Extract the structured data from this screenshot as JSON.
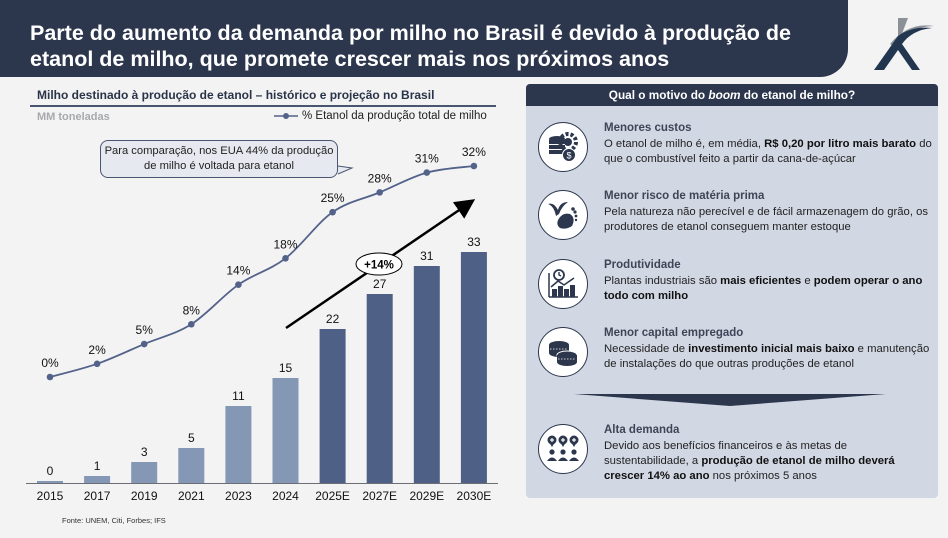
{
  "header": {
    "title": "Parte do aumento da demanda por milho no Brasil é devido à produção de etanol de milho, que promete crescer mais nos próximos anos",
    "logo": "company-logo-icon"
  },
  "chart_data": {
    "type": "bar",
    "title": "Milho destinado à produção de etanol – histórico e projeção no Brasil",
    "ylabel": "MM toneladas",
    "xlabel": "",
    "categories": [
      "2015",
      "2017",
      "2019",
      "2021",
      "2023",
      "2024",
      "2025E",
      "2027E",
      "2029E",
      "2030E"
    ],
    "series": [
      {
        "name": "Milho destinado à produção de etanol (MM toneladas)",
        "type": "bar",
        "values": [
          0,
          1,
          3,
          5,
          11,
          15,
          22,
          27,
          31,
          33
        ],
        "projected": [
          false,
          false,
          false,
          false,
          false,
          false,
          true,
          true,
          true,
          true
        ]
      },
      {
        "name": "% Etanol da produção total de milho",
        "type": "line",
        "values": [
          0,
          2,
          5,
          8,
          14,
          18,
          25,
          28,
          31,
          32
        ],
        "labels": [
          "0%",
          "2%",
          "5%",
          "8%",
          "14%",
          "18%",
          "25%",
          "28%",
          "31%",
          "32%"
        ]
      }
    ],
    "legend": {
      "entries": [
        "% Etanol da produção total de milho"
      ],
      "position": "top-right"
    },
    "grid": false,
    "annotations": {
      "growth_label": "+14%",
      "callout": "Para comparação, nos EUA 44% da produção de milho é voltada para etanol"
    },
    "colors": {
      "historical": "#8497b5",
      "projected": "#4f6086",
      "line": "#536289"
    }
  },
  "source": "Fonte: UNEM, Citi, Forbes; IFS",
  "panel": {
    "header_prefix": "Qual o motivo do ",
    "header_em": "boom",
    "header_suffix": " do etanol de milho?",
    "items": [
      {
        "icon": "coins-gear-icon",
        "title": "Menores custos",
        "parts": [
          [
            "O etanol de milho é, em média, ",
            false
          ],
          [
            "R$ 0,20 por litro mais barato",
            true
          ],
          [
            " do que o combustível feito a partir da cana-de-açúcar",
            false
          ]
        ]
      },
      {
        "icon": "plant-footprint-icon",
        "title": "Menor risco de matéria prima",
        "parts": [
          [
            "Pela natureza não perecível e de fácil armazenagem do grão, os produtores de etanol conseguem manter estoque",
            false
          ]
        ]
      },
      {
        "icon": "productivity-chart-icon",
        "title": "Produtividade",
        "parts": [
          [
            "Plantas industriais são ",
            false
          ],
          [
            "mais eficientes",
            true
          ],
          [
            " e ",
            false
          ],
          [
            "podem operar o ano todo com milho",
            true
          ]
        ]
      },
      {
        "icon": "coin-stack-icon",
        "title": "Menor capital empregado",
        "parts": [
          [
            "Necessidade de ",
            false
          ],
          [
            "investimento inicial mais baixo",
            true
          ],
          [
            " e manutenção de instalações do que outras produções de etanol",
            false
          ]
        ]
      },
      {
        "icon": "people-demand-icon",
        "title": "Alta demanda",
        "parts": [
          [
            "Devido aos benefícios financeiros e às metas de sustentabilidade, a ",
            false
          ],
          [
            "produção de etanol de milho deverá crescer 14% ao ano",
            true
          ],
          [
            " nos próximos 5 anos",
            false
          ]
        ]
      }
    ]
  }
}
